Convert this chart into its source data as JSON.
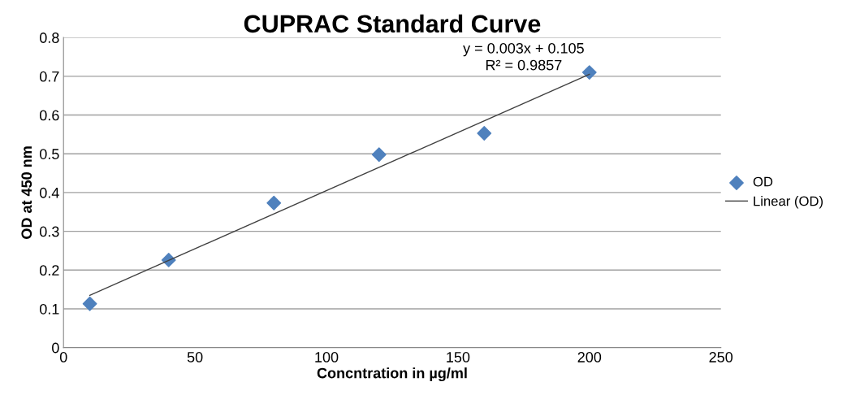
{
  "chart_data": {
    "type": "scatter",
    "title": "CUPRAC Standard Curve",
    "xlabel": "Concntration in µg/ml",
    "ylabel": "OD at 450 nm",
    "series": [
      {
        "name": "OD",
        "color": "#4f81bd",
        "marker": "diamond",
        "x": [
          10,
          40,
          80,
          120,
          160,
          200
        ],
        "values": [
          0.113,
          0.226,
          0.373,
          0.498,
          0.553,
          0.71
        ]
      },
      {
        "name": "Linear (OD)",
        "type": "line",
        "color": "#404040",
        "marker": "none",
        "line_style": "solid",
        "x": [
          10,
          200
        ],
        "values": [
          0.135,
          0.705
        ]
      }
    ],
    "annotations": [
      "y = 0.003x + 0.105",
      "R² = 0.9857"
    ],
    "xlim": [
      0,
      250
    ],
    "xticks": [
      0,
      50,
      100,
      150,
      200,
      250
    ],
    "ylim": [
      0,
      0.8
    ],
    "yticks": [
      0,
      0.1,
      0.2,
      0.3,
      0.4,
      0.5,
      0.6,
      0.7,
      0.8
    ],
    "grid": "y",
    "legend": "right"
  }
}
